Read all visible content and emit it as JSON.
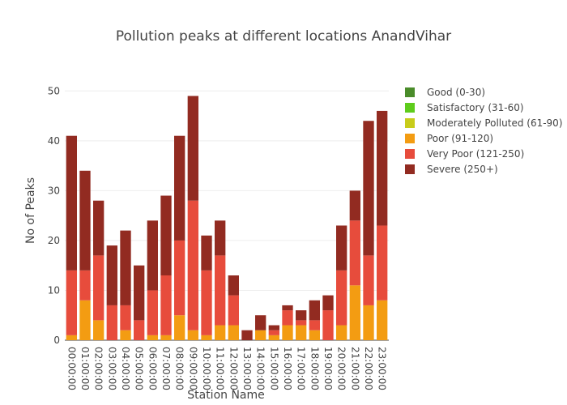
{
  "chart_data": {
    "type": "bar",
    "barmode": "stack",
    "title": "Pollution peaks at different locations AnandVihar",
    "xlabel": "Station Name",
    "ylabel": "No of Peaks",
    "ylim": [
      0,
      52
    ],
    "yticks": [
      0,
      10,
      20,
      30,
      40,
      50
    ],
    "grid": true,
    "legend_position": "right",
    "categories": [
      "00:00:00",
      "01:00:00",
      "02:00:00",
      "03:00:00",
      "04:00:00",
      "05:00:00",
      "06:00:00",
      "07:00:00",
      "08:00:00",
      "09:00:00",
      "10:00:00",
      "11:00:00",
      "12:00:00",
      "13:00:00",
      "14:00:00",
      "15:00:00",
      "16:00:00",
      "17:00:00",
      "18:00:00",
      "19:00:00",
      "20:00:00",
      "21:00:00",
      "22:00:00",
      "23:00:00"
    ],
    "series": [
      {
        "name": "Good (0-30)",
        "color": "#4a8c2a",
        "values": [
          0,
          0,
          0,
          0,
          0,
          0,
          0,
          0,
          0,
          0,
          0,
          0,
          0,
          0,
          0,
          0,
          0,
          0,
          0,
          0,
          0,
          0,
          0,
          0
        ]
      },
      {
        "name": "Satisfactory (31-60)",
        "color": "#5ecc1c",
        "values": [
          0,
          0,
          0,
          0,
          0,
          0,
          0,
          0,
          0,
          0,
          0,
          0,
          0,
          0,
          0,
          0,
          0,
          0,
          0,
          0,
          0,
          0,
          0,
          0
        ]
      },
      {
        "name": "Moderately Polluted (61-90)",
        "color": "#c8cc1a",
        "values": [
          0,
          0,
          0,
          0,
          0,
          0,
          0,
          0,
          0,
          0,
          0,
          0,
          0,
          0,
          0,
          0,
          0,
          0,
          0,
          0,
          0,
          0,
          0,
          0
        ]
      },
      {
        "name": "Poor (91-120)",
        "color": "#f39c12",
        "values": [
          1,
          8,
          4,
          0,
          2,
          0,
          1,
          1,
          5,
          2,
          1,
          3,
          3,
          0,
          2,
          1,
          3,
          3,
          2,
          0,
          3,
          11,
          7,
          8
        ]
      },
      {
        "name": "Very Poor (121-250)",
        "color": "#e74c3c",
        "values": [
          13,
          6,
          13,
          7,
          5,
          4,
          9,
          12,
          15,
          26,
          13,
          14,
          6,
          0,
          0,
          1,
          3,
          1,
          2,
          6,
          11,
          13,
          10,
          15
        ]
      },
      {
        "name": "Severe (250+)",
        "color": "#922b21",
        "values": [
          27,
          20,
          11,
          12,
          15,
          11,
          14,
          16,
          21,
          21,
          7,
          7,
          4,
          2,
          3,
          1,
          1,
          2,
          4,
          3,
          9,
          6,
          27,
          23
        ]
      }
    ]
  }
}
